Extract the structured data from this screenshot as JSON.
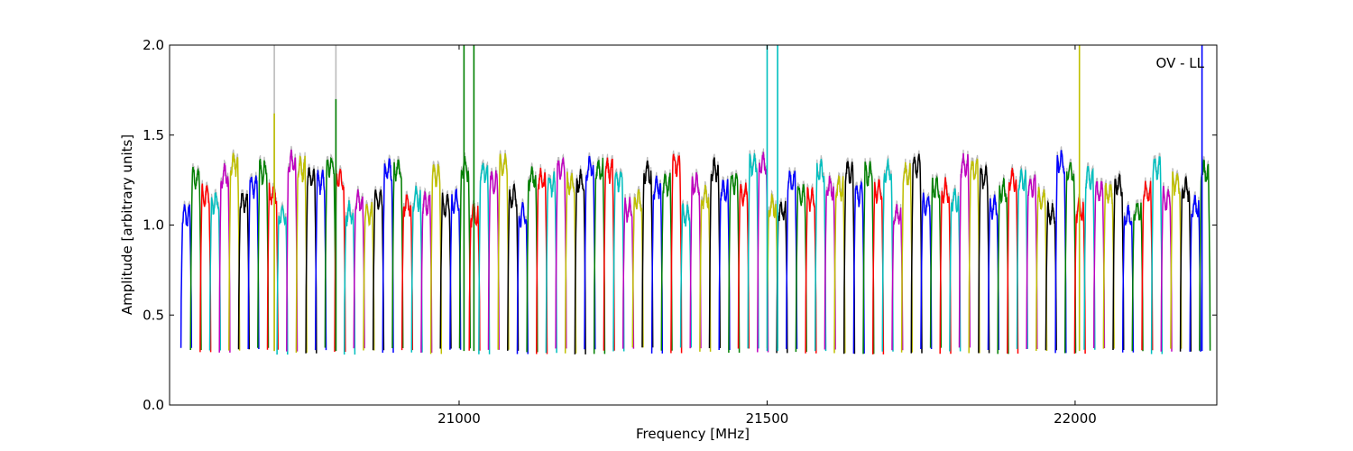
{
  "chart_data": {
    "type": "line",
    "annotation": "OV - LL",
    "xlabel": "Frequency [MHz]",
    "ylabel": "Amplitude [arbitrary units]",
    "xlim": [
      20530,
      22230
    ],
    "ylim": [
      0.0,
      2.0
    ],
    "x_ticks": [
      21000,
      21500,
      22000
    ],
    "y_ticks": [
      0.0,
      0.5,
      1.0,
      1.5,
      2.0
    ],
    "x_tick_labels": [
      "21000",
      "21500",
      "22000"
    ],
    "y_tick_labels": [
      "0.0",
      "0.5",
      "1.0",
      "1.5",
      "2.0"
    ],
    "grid": false,
    "colors": [
      "#0000ff",
      "#008000",
      "#ff0000",
      "#00bfbf",
      "#bf00bf",
      "#bfbf00",
      "#000000"
    ],
    "background_trace_color": "#bbbbbb",
    "band_model": {
      "first_band_center": 20557,
      "band_spacing": 15.6,
      "band_count": 107,
      "typical_peak": 1.2,
      "trough": 0.3
    },
    "spikes": [
      {
        "x": 20700,
        "peak": 2.0,
        "color": "#bbbbbb"
      },
      {
        "x": 20700,
        "peak": 1.62,
        "color": "#bfbf00"
      },
      {
        "x": 20800,
        "peak": 2.0,
        "color": "#bbbbbb"
      },
      {
        "x": 20800,
        "peak": 1.7,
        "color": "#008000"
      },
      {
        "x": 21008,
        "peak": 2.0,
        "color": "#008000"
      },
      {
        "x": 21024,
        "peak": 2.0,
        "color": "#008000"
      },
      {
        "x": 21500,
        "peak": 2.0,
        "color": "#00bfbf"
      },
      {
        "x": 21517,
        "peak": 2.0,
        "color": "#00bfbf"
      },
      {
        "x": 22007,
        "peak": 2.0,
        "color": "#bfbf00"
      },
      {
        "x": 22206,
        "peak": 2.0,
        "color": "#0000ff"
      }
    ]
  }
}
